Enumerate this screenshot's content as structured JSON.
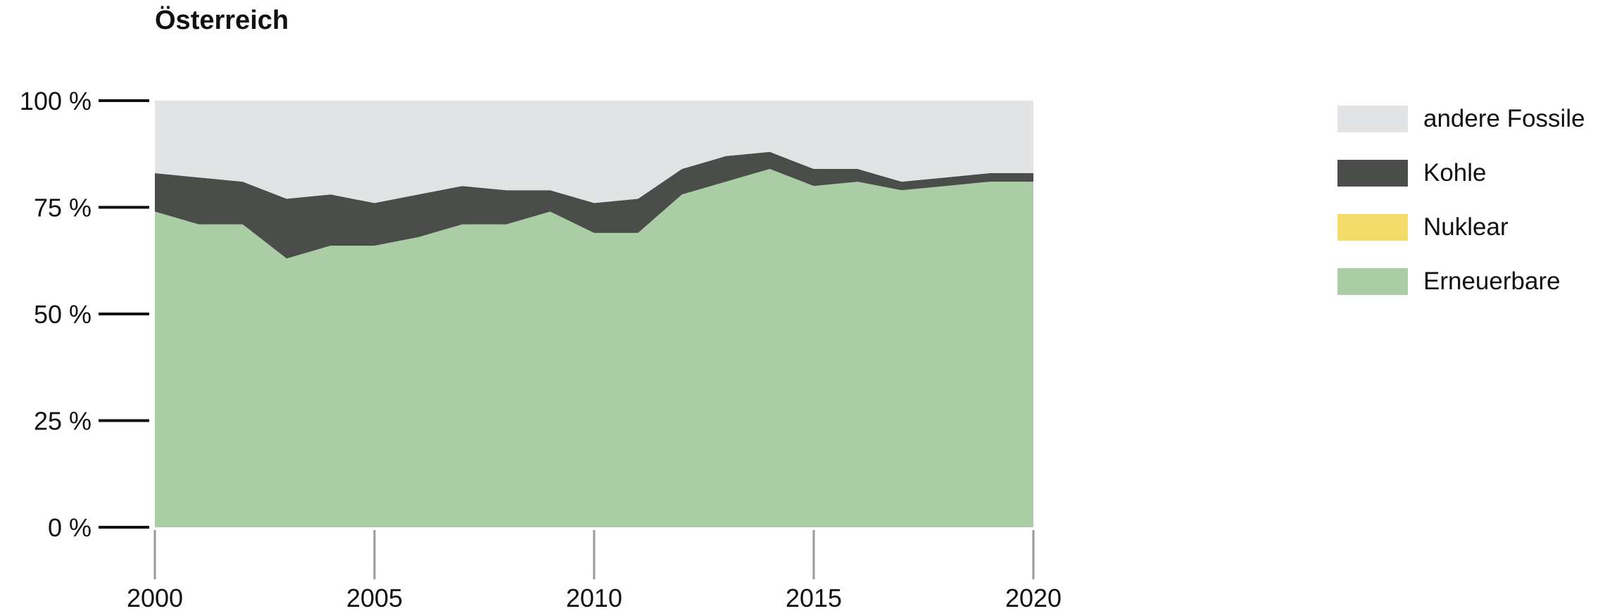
{
  "chart_data": {
    "type": "area",
    "stacked": true,
    "normalized_percent": true,
    "title": "Österreich",
    "xlabel": "",
    "ylabel": "",
    "x": [
      2000,
      2001,
      2002,
      2003,
      2004,
      2005,
      2006,
      2007,
      2008,
      2009,
      2010,
      2011,
      2012,
      2013,
      2014,
      2015,
      2016,
      2017,
      2018,
      2019,
      2020
    ],
    "xlim": [
      2000,
      2020
    ],
    "ylim": [
      0,
      100
    ],
    "x_ticks": [
      2000,
      2005,
      2010,
      2015,
      2020
    ],
    "x_tick_labels": [
      "2000",
      "2005",
      "2010",
      "2015",
      "2020"
    ],
    "y_ticks": [
      0,
      25,
      50,
      75,
      100
    ],
    "y_tick_labels": [
      "0 %",
      "25 %",
      "50 %",
      "75 %",
      "100 %"
    ],
    "grid": false,
    "legend_position": "right",
    "series": [
      {
        "name": "Erneuerbare",
        "color": "#abcda6",
        "values": [
          74,
          71,
          71,
          63,
          66,
          66,
          68,
          71,
          71,
          74,
          69,
          69,
          78,
          81,
          84,
          80,
          81,
          79,
          80,
          81,
          81
        ]
      },
      {
        "name": "Nuklear",
        "color": "#f3dc6a",
        "values": [
          0,
          0,
          0,
          0,
          0,
          0,
          0,
          0,
          0,
          0,
          0,
          0,
          0,
          0,
          0,
          0,
          0,
          0,
          0,
          0,
          0
        ]
      },
      {
        "name": "Kohle",
        "color": "#4b4d4b",
        "values": [
          9,
          11,
          10,
          14,
          12,
          10,
          10,
          9,
          8,
          5,
          7,
          8,
          6,
          6,
          4,
          4,
          3,
          2,
          2,
          2,
          2
        ]
      },
      {
        "name": "andere Fossile",
        "color": "#e1e3e4",
        "values": [
          17,
          18,
          19,
          23,
          22,
          24,
          22,
          20,
          21,
          21,
          24,
          23,
          16,
          13,
          12,
          16,
          16,
          19,
          18,
          17,
          17
        ]
      }
    ],
    "legend_order": [
      "andere Fossile",
      "Kohle",
      "Nuklear",
      "Erneuerbare"
    ]
  }
}
